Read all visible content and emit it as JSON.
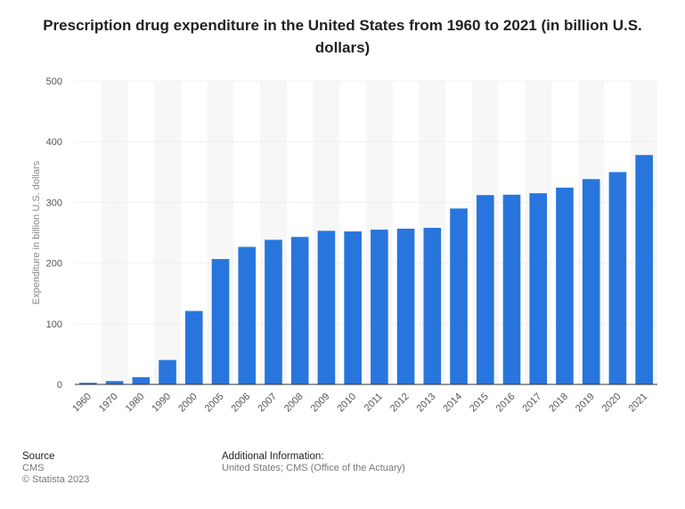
{
  "chart_data": {
    "type": "bar",
    "title": "Prescription drug expenditure in the United States from 1960 to 2021 (in billion U.S. dollars)",
    "xlabel": "",
    "ylabel": "Expenditure in billion U.S. dollars",
    "ylim": [
      0,
      500
    ],
    "yticks": [
      0,
      100,
      200,
      300,
      400,
      500
    ],
    "grid": true,
    "legend": "none",
    "categories": [
      "1960",
      "1970",
      "1980",
      "1990",
      "2000",
      "2005",
      "2006",
      "2007",
      "2008",
      "2009",
      "2010",
      "2011",
      "2012",
      "2013",
      "2014",
      "2015",
      "2016",
      "2017",
      "2018",
      "2019",
      "2020",
      "2021"
    ],
    "values": [
      2.7,
      5.5,
      12.0,
      40.3,
      121.0,
      206.6,
      226.6,
      238.3,
      243.0,
      253.1,
      252.1,
      255.0,
      256.6,
      258.0,
      289.9,
      312.0,
      312.6,
      315.0,
      324.3,
      338.3,
      349.9,
      378.0
    ],
    "bar_color": "#2876dd",
    "band_color": "#f7f7f7",
    "grid_color": "#dddddd"
  },
  "footer": {
    "source_heading": "Source",
    "source_lines": [
      "CMS",
      "© Statista 2023"
    ],
    "info_heading": "Additional Information:",
    "info_line": "United States; CMS (Office of the Actuary)"
  }
}
